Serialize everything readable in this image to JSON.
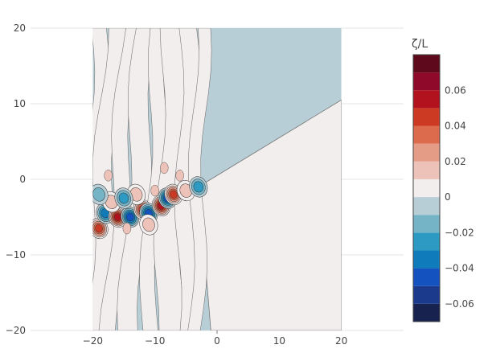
{
  "chart_data": {
    "type": "contour",
    "title": "",
    "xlabel": "",
    "ylabel": "",
    "xlim": [
      -30,
      30
    ],
    "ylim": [
      -20,
      20
    ],
    "xticks": [
      {
        "value": -20,
        "label": "−20"
      },
      {
        "value": -10,
        "label": "−10"
      },
      {
        "value": 0,
        "label": "0"
      },
      {
        "value": 10,
        "label": "10"
      },
      {
        "value": 20,
        "label": "20"
      }
    ],
    "yticks": [
      {
        "value": 20,
        "label": "20"
      },
      {
        "value": 10,
        "label": "10"
      },
      {
        "value": 0,
        "label": "0"
      },
      {
        "value": -10,
        "label": "−10"
      },
      {
        "value": -20,
        "label": "−20"
      }
    ],
    "data_extent": {
      "x": [
        -20,
        20
      ],
      "y": [
        -20,
        20
      ]
    },
    "grid": true,
    "colorbar": {
      "title": "ζ/L",
      "range": [
        -0.07,
        0.08
      ],
      "levels": [
        -0.07,
        -0.06,
        -0.05,
        -0.04,
        -0.03,
        -0.02,
        -0.01,
        0,
        0.01,
        0.02,
        0.03,
        0.04,
        0.05,
        0.06,
        0.07,
        0.08
      ],
      "colors": [
        "#17224f",
        "#1b3a8c",
        "#1452c0",
        "#0f7bbb",
        "#2c9ac3",
        "#75b4c6",
        "#b8ced6",
        "#f2eeed",
        "#edc2b8",
        "#e49c86",
        "#dc6b4e",
        "#cc3a23",
        "#b2111e",
        "#8f0a2a",
        "#5e0a1c"
      ],
      "ticks": [
        {
          "value": 0.06,
          "label": "0.06"
        },
        {
          "value": 0.04,
          "label": "0.04"
        },
        {
          "value": 0.02,
          "label": "0.02"
        },
        {
          "value": 0,
          "label": "0"
        },
        {
          "value": -0.02,
          "label": "−0.02"
        },
        {
          "value": -0.04,
          "label": "−0.04"
        },
        {
          "value": -0.06,
          "label": "−0.06"
        }
      ]
    },
    "vortices": [
      {
        "x": -19,
        "y": -6.5,
        "sign": "positive",
        "level": 0.05
      },
      {
        "x": -18,
        "y": -4.5,
        "sign": "negative",
        "level": -0.04
      },
      {
        "x": -16,
        "y": -5,
        "sign": "positive",
        "level": 0.06
      },
      {
        "x": -14,
        "y": -5,
        "sign": "negative",
        "level": -0.05
      },
      {
        "x": -12,
        "y": -4,
        "sign": "positive",
        "level": 0.05
      },
      {
        "x": -11,
        "y": -4.5,
        "sign": "negative",
        "level": -0.05
      },
      {
        "x": -9,
        "y": -3.5,
        "sign": "positive",
        "level": 0.06
      },
      {
        "x": -8,
        "y": -2.5,
        "sign": "negative",
        "level": -0.05
      },
      {
        "x": -7,
        "y": -2,
        "sign": "positive",
        "level": 0.05
      },
      {
        "x": -5,
        "y": -1.5,
        "sign": "positive",
        "level": 0.02
      },
      {
        "x": -3,
        "y": -1,
        "sign": "negative",
        "level": -0.03
      },
      {
        "x": -17,
        "y": -3,
        "sign": "positive",
        "level": 0.02
      },
      {
        "x": -13,
        "y": -2,
        "sign": "positive",
        "level": 0.02
      },
      {
        "x": -15,
        "y": -2.5,
        "sign": "negative",
        "level": -0.03
      },
      {
        "x": -19,
        "y": -2,
        "sign": "negative",
        "level": -0.02
      },
      {
        "x": -11,
        "y": -6,
        "sign": "positive",
        "level": 0.02
      }
    ],
    "wedge": {
      "apex": [
        -3,
        -1
      ],
      "upper_edge_end": [
        20,
        10.5
      ],
      "lower_edge_end": [
        20,
        -20
      ],
      "sign": "positive",
      "level": 0
    }
  }
}
